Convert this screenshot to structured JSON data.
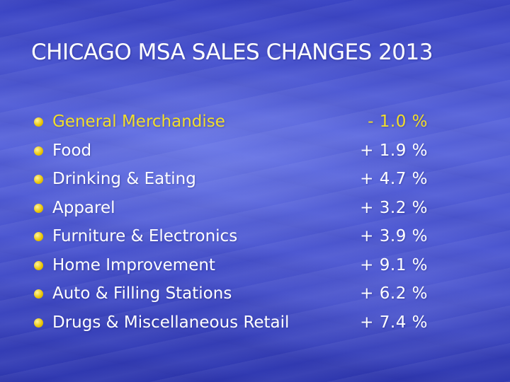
{
  "title": "CHICAGO MSA SALES CHANGES 2013",
  "accent_color": "#f2de2a",
  "items": [
    {
      "label": "General Merchandise",
      "value": "- 1.0 %",
      "highlight": true
    },
    {
      "label": "Food",
      "value": "+ 1.9 %",
      "highlight": false
    },
    {
      "label": "Drinking & Eating",
      "value": "+ 4.7 %",
      "highlight": false
    },
    {
      "label": "Apparel",
      "value": "+ 3.2 %",
      "highlight": false
    },
    {
      "label": "Furniture & Electronics",
      "value": "+ 3.9 %",
      "highlight": false
    },
    {
      "label": "Home Improvement",
      "value": "+ 9.1 %",
      "highlight": false
    },
    {
      "label": "Auto & Filling Stations",
      "value": "+ 6.2 %",
      "highlight": false
    },
    {
      "label": "Drugs & Miscellaneous Retail",
      "value": "+ 7.4 %",
      "highlight": false
    }
  ]
}
